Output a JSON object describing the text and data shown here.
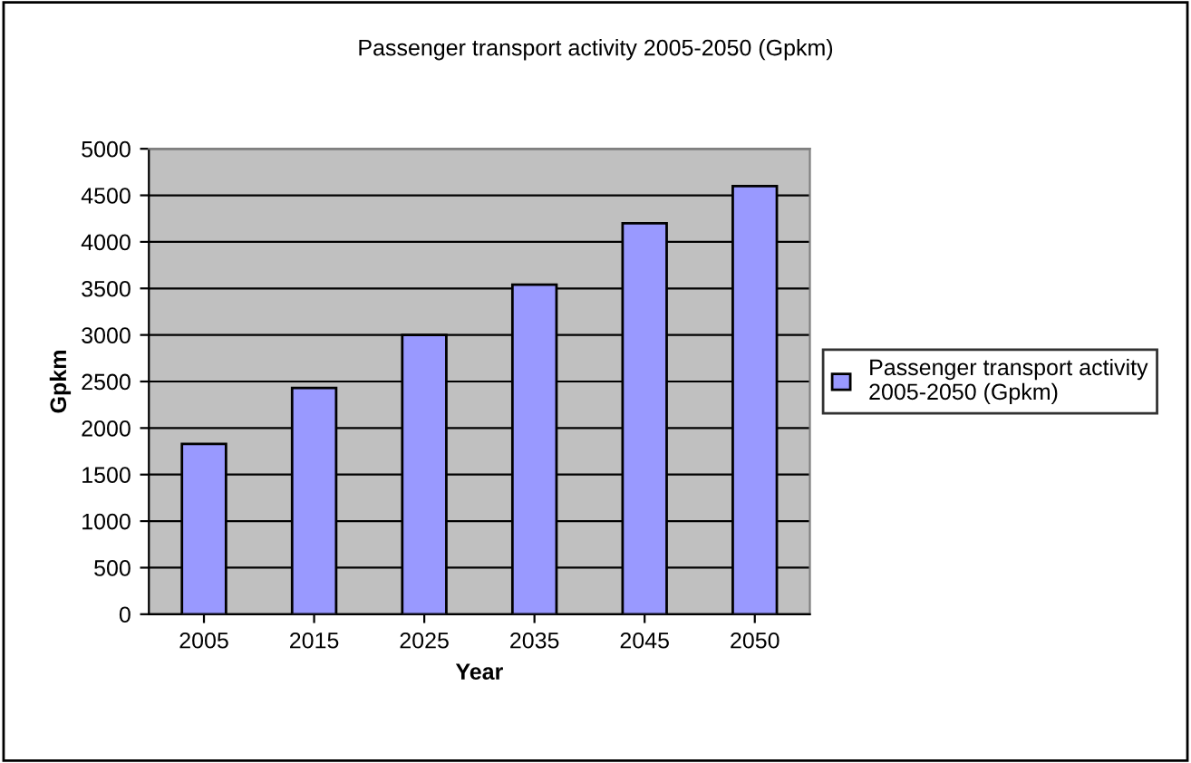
{
  "chart_data": {
    "type": "bar",
    "title": "Passenger transport activity 2005-2050 (Gpkm)",
    "xlabel": "Year",
    "ylabel": "Gpkm",
    "categories": [
      "2005",
      "2015",
      "2025",
      "2035",
      "2045",
      "2050"
    ],
    "series": [
      {
        "name": "Passenger transport activity\n2005-2050 (Gpkm)",
        "color": "#9999ff",
        "values": [
          1830,
          2430,
          3000,
          3540,
          4200,
          4600
        ]
      }
    ],
    "ylim": [
      0,
      5000
    ],
    "yticks": [
      0,
      500,
      1000,
      1500,
      2000,
      2500,
      3000,
      3500,
      4000,
      4500,
      5000
    ],
    "grid": "y",
    "legend": "right"
  }
}
